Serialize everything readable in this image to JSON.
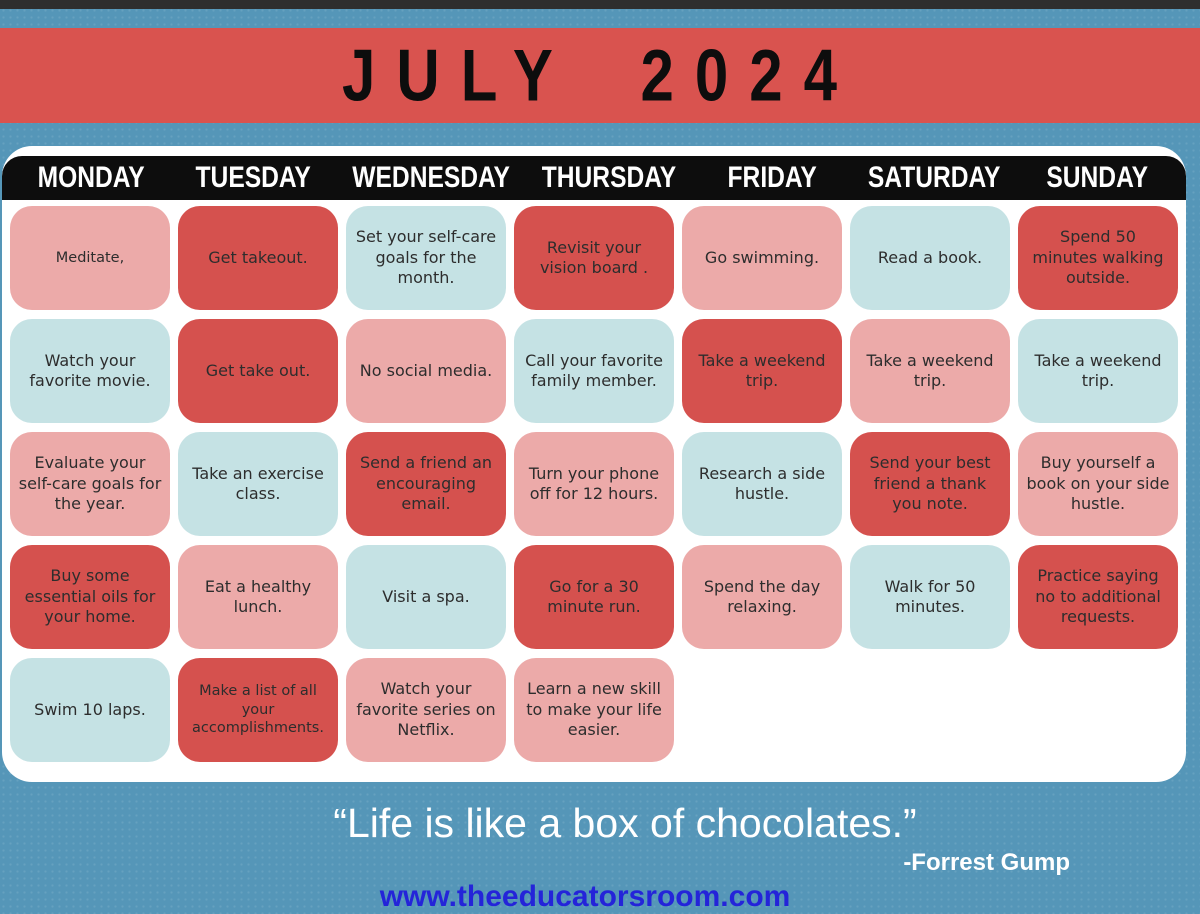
{
  "title": "JULY 2024",
  "days": [
    "MONDAY",
    "TUESDAY",
    "WEDNESDAY",
    "THURSDAY",
    "FRIDAY",
    "SATURDAY",
    "SUNDAY"
  ],
  "palette": {
    "page_background": "#5596b8",
    "top_bar": "#2e2e2e",
    "banner_red": "#d9534f",
    "header_black": "#0d0d0d",
    "cell_red": "#d5514e",
    "cell_pink": "#ecaaa9",
    "cell_teal": "#c5e2e4",
    "cell_text": "#2d2d2d",
    "url_blue": "#2424d9"
  },
  "calendar": {
    "rows": [
      [
        {
          "text": "Meditate,",
          "color": "pink",
          "size": "sm"
        },
        {
          "text": "Get takeout.",
          "color": "red"
        },
        {
          "text": "Set your self-care goals for the month.",
          "color": "teal"
        },
        {
          "text": "Revisit your vision board .",
          "color": "red"
        },
        {
          "text": "Go swimming.",
          "color": "pink"
        },
        {
          "text": "Read a book.",
          "color": "teal"
        },
        {
          "text": "Spend 50 minutes walking outside.",
          "color": "red"
        }
      ],
      [
        {
          "text": "Watch your favorite movie.",
          "color": "teal"
        },
        {
          "text": "Get take out.",
          "color": "red"
        },
        {
          "text": "No social media.",
          "color": "pink"
        },
        {
          "text": "Call your favorite family member.",
          "color": "teal"
        },
        {
          "text": "Take a weekend trip.",
          "color": "red"
        },
        {
          "text": "Take a weekend trip.",
          "color": "pink"
        },
        {
          "text": "Take a weekend trip.",
          "color": "teal"
        }
      ],
      [
        {
          "text": "Evaluate your self-care goals for the year.",
          "color": "pink"
        },
        {
          "text": "Take an exercise class.",
          "color": "teal"
        },
        {
          "text": "Send a friend an encouraging email.",
          "color": "red"
        },
        {
          "text": "Turn your phone off for 12 hours.",
          "color": "pink"
        },
        {
          "text": "Research a side hustle.",
          "color": "teal"
        },
        {
          "text": "Send your best friend a thank you note.",
          "color": "red"
        },
        {
          "text": "Buy yourself a book on your side hustle.",
          "color": "pink"
        }
      ],
      [
        {
          "text": "Buy some essential oils for your home.",
          "color": "red"
        },
        {
          "text": "Eat a healthy lunch.",
          "color": "pink"
        },
        {
          "text": "Visit a spa.",
          "color": "teal"
        },
        {
          "text": "Go for a 30 minute run.",
          "color": "red"
        },
        {
          "text": "Spend the day relaxing.",
          "color": "pink"
        },
        {
          "text": "Walk for 50 minutes.",
          "color": "teal"
        },
        {
          "text": "Practice saying no to additional requests.",
          "color": "red"
        }
      ],
      [
        {
          "text": "Swim 10 laps.",
          "color": "teal"
        },
        {
          "text": "Make a list of all your accomplishments.",
          "color": "red",
          "size": "sm"
        },
        {
          "text": "Watch your favorite series on Netflix.",
          "color": "pink"
        },
        {
          "text": "Learn a new skill to make your life easier.",
          "color": "pink"
        },
        null,
        null,
        null
      ]
    ]
  },
  "quote": {
    "text": "“Life is like a box of chocolates.”",
    "attribution": "-Forrest Gump"
  },
  "footer_url": "www.theeducatorsroom.com"
}
